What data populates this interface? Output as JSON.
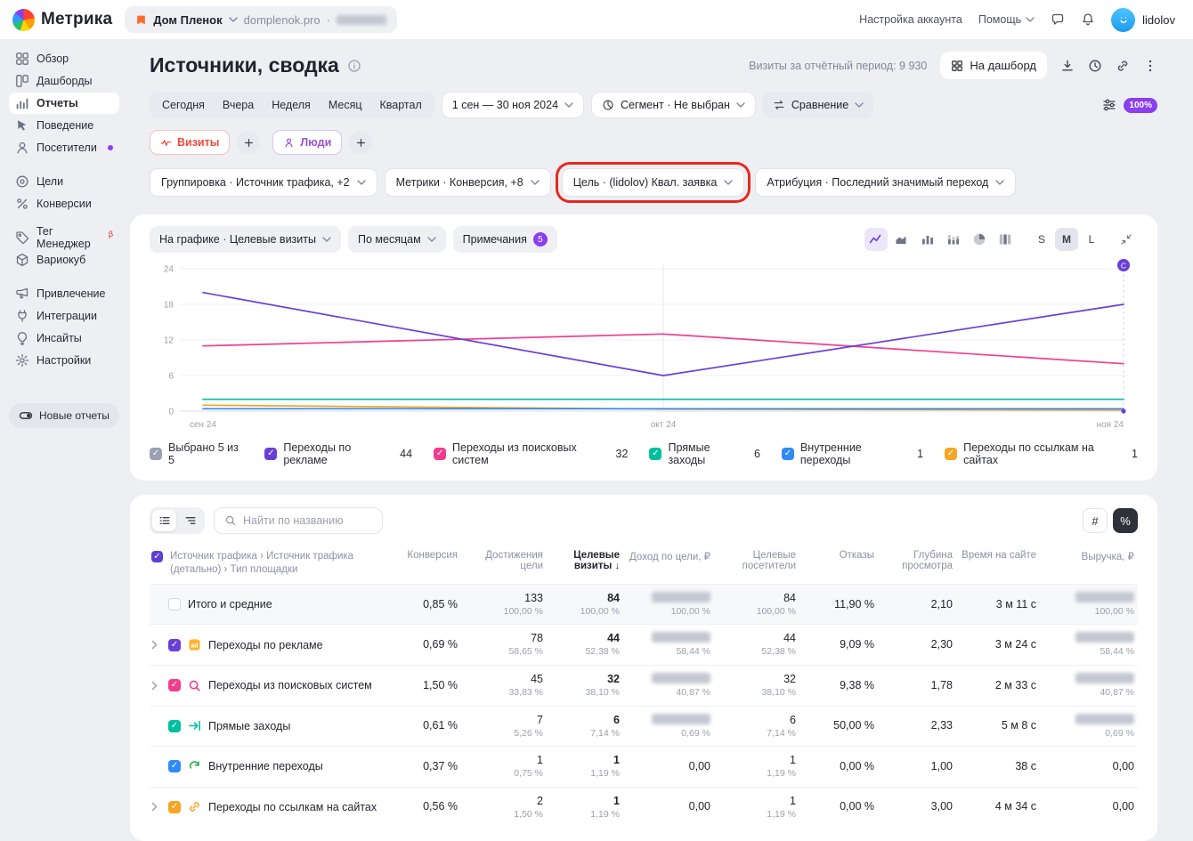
{
  "topbar": {
    "logo_text": "Метрика",
    "counter": {
      "name": "Дом Пленок",
      "domain": "domplenok.pro",
      "separator": "·"
    },
    "account_settings": "Настройка аккаунта",
    "help": "Помощь",
    "user_name": "lidolov"
  },
  "sidebar": {
    "sections": [
      {
        "items": [
          {
            "key": "overview",
            "label": "Обзор",
            "icon": "overview"
          },
          {
            "key": "dashboards",
            "label": "Дашборды",
            "icon": "dashboards"
          },
          {
            "key": "reports",
            "label": "Отчеты",
            "icon": "reports",
            "active": true
          },
          {
            "key": "behavior",
            "label": "Поведение",
            "icon": "behavior"
          },
          {
            "key": "visitors",
            "label": "Посетители",
            "icon": "visitors",
            "dot": true
          }
        ]
      },
      {
        "items": [
          {
            "key": "goals",
            "label": "Цели",
            "icon": "goals"
          },
          {
            "key": "conversions",
            "label": "Конверсии",
            "icon": "conversions"
          }
        ]
      },
      {
        "items": [
          {
            "key": "tag-manager",
            "label": "Тег Менеджер",
            "icon": "tag",
            "badge": "β"
          },
          {
            "key": "variocube",
            "label": "Вариокуб",
            "icon": "variocube"
          }
        ]
      },
      {
        "items": [
          {
            "key": "attraction",
            "label": "Привлечение",
            "icon": "attraction"
          },
          {
            "key": "integrations",
            "label": "Интеграции",
            "icon": "integrations"
          },
          {
            "key": "insights",
            "label": "Инсайты",
            "icon": "insights"
          },
          {
            "key": "settings",
            "label": "Настройки",
            "icon": "settings"
          }
        ]
      }
    ],
    "new_reports_label": "Новые отчеты"
  },
  "page": {
    "title": "Источники, сводка",
    "visits_summary": "Визиты за отчётный период: 9 930",
    "to_dashboard": "На дашборд"
  },
  "filters": {
    "periods": [
      "Сегодня",
      "Вчера",
      "Неделя",
      "Месяц",
      "Квартал"
    ],
    "date_range": "1 сен — 30 ноя 2024",
    "segment": "Сегмент · Не выбран",
    "comparison": "Сравнение",
    "sampling": "100%",
    "metric_chips": [
      {
        "key": "visits",
        "label": "Визиты",
        "color": "#ef4a3d",
        "icon": "pulse"
      },
      {
        "key": "people",
        "label": "Люди",
        "color": "#9954d6",
        "icon": "person"
      }
    ],
    "setting_chips": [
      {
        "key": "grouping",
        "label": "Группировка · Источник трафика, +2"
      },
      {
        "key": "metrics",
        "label": "Метрики · Конверсия, +8"
      },
      {
        "key": "goal",
        "label": "Цель · (lidolov) Квал. заявка",
        "annotated": true
      },
      {
        "key": "attribution",
        "label": "Атрибуция · Последний значимый переход"
      }
    ]
  },
  "chart_card": {
    "on_chart": "На графике · Целевые визиты",
    "grouping": "По месяцам",
    "notes": "Примечания",
    "notes_count": "5",
    "view_icons": [
      "line",
      "area",
      "bars",
      "stacked",
      "pie",
      "columns"
    ],
    "active_view": "line",
    "sizes": [
      "S",
      "M",
      "L"
    ],
    "active_size": "M",
    "selected_label": "Выбрано 5 из 5",
    "current_marker": "C"
  },
  "chart_data": {
    "type": "line",
    "title": "Целевые визиты по месяцам",
    "x": [
      "сен 24",
      "окт 24",
      "ноя 24"
    ],
    "ylim": [
      0,
      24
    ],
    "yticks": [
      0,
      6,
      12,
      18,
      24
    ],
    "grid": true,
    "legend_position": "bottom",
    "series": [
      {
        "name": "Переходы по рекламе",
        "values": [
          20,
          6,
          18
        ],
        "total": 44,
        "color": "#6a3fd8"
      },
      {
        "name": "Переходы из поисковых систем",
        "values": [
          11,
          13,
          8
        ],
        "total": 32,
        "color": "#f23d8f"
      },
      {
        "name": "Прямые заходы",
        "values": [
          2,
          2,
          2
        ],
        "total": 6,
        "color": "#00bfa0"
      },
      {
        "name": "Внутренние переходы",
        "values": [
          0.4,
          0.4,
          0.4
        ],
        "total": 1,
        "color": "#2f8af5"
      },
      {
        "name": "Переходы по ссылкам на сайтах",
        "values": [
          1,
          0.35,
          0.2
        ],
        "total": 1,
        "color": "#f5a623"
      }
    ]
  },
  "table": {
    "search_placeholder": "Найти по названию",
    "hash_btn": "#",
    "percent_btn": "%",
    "headers": [
      {
        "label": "Источник трафика › Источник трафика (детально) › Тип площадки",
        "first": true
      },
      {
        "label": "Конверсия"
      },
      {
        "label": "Достижения цели"
      },
      {
        "label": "Целевые визиты",
        "sorted": true
      },
      {
        "label": "Доход по цели, ₽"
      },
      {
        "label": "Целевые посетители"
      },
      {
        "label": "Отказы"
      },
      {
        "label": "Глубина просмотра"
      },
      {
        "label": "Время на сайте"
      },
      {
        "label": "Выручка, ₽"
      }
    ],
    "rows": [
      {
        "name": "Итого и средние",
        "total": true,
        "chevron": false,
        "cells": [
          {
            "v": "0,85 %"
          },
          {
            "v": "133",
            "s": "100,00 %"
          },
          {
            "v": "84",
            "s": "100,00 %"
          },
          {
            "b": true,
            "s": "100,00 %"
          },
          {
            "v": "84",
            "s": "100,00 %"
          },
          {
            "v": "11,90 %"
          },
          {
            "v": "2,10"
          },
          {
            "v": "3 м 11 с"
          },
          {
            "b": true,
            "s": "100,00 %"
          }
        ]
      },
      {
        "name": "Переходы по рекламе",
        "chevron": true,
        "check_color": "#6a3fd8",
        "icon": "src-ads",
        "cells": [
          {
            "v": "0,69 %"
          },
          {
            "v": "78",
            "s": "58,65 %"
          },
          {
            "v": "44",
            "s": "52,38 %"
          },
          {
            "b": true,
            "s": "58,44 %"
          },
          {
            "v": "44",
            "s": "52,38 %"
          },
          {
            "v": "9,09 %"
          },
          {
            "v": "2,30"
          },
          {
            "v": "3 м 24 с"
          },
          {
            "b": true,
            "s": "58,44 %"
          }
        ]
      },
      {
        "name": "Переходы из поисковых систем",
        "chevron": true,
        "check_color": "#f23d8f",
        "icon": "src-search",
        "cells": [
          {
            "v": "1,50 %"
          },
          {
            "v": "45",
            "s": "33,83 %"
          },
          {
            "v": "32",
            "s": "38,10 %"
          },
          {
            "b": true,
            "s": "40,87 %"
          },
          {
            "v": "32",
            "s": "38,10 %"
          },
          {
            "v": "9,38 %"
          },
          {
            "v": "1,78"
          },
          {
            "v": "2 м 33 с"
          },
          {
            "b": true,
            "s": "40,87 %"
          }
        ]
      },
      {
        "name": "Прямые заходы",
        "chevron": false,
        "check_color": "#00bfa0",
        "icon": "src-direct",
        "cells": [
          {
            "v": "0,61 %"
          },
          {
            "v": "7",
            "s": "5,26 %"
          },
          {
            "v": "6",
            "s": "7,14 %"
          },
          {
            "b": true,
            "s": "0,69 %"
          },
          {
            "v": "6",
            "s": "7,14 %"
          },
          {
            "v": "50,00 %"
          },
          {
            "v": "2,33"
          },
          {
            "v": "5 м 8 с"
          },
          {
            "b": true,
            "s": "0,69 %"
          }
        ]
      },
      {
        "name": "Внутренние переходы",
        "chevron": false,
        "check_color": "#2f8af5",
        "icon": "src-internal",
        "cells": [
          {
            "v": "0,37 %"
          },
          {
            "v": "1",
            "s": "0,75 %"
          },
          {
            "v": "1",
            "s": "1,19 %"
          },
          {
            "v": "0,00"
          },
          {
            "v": "1",
            "s": "1,19 %"
          },
          {
            "v": "0,00 %"
          },
          {
            "v": "1,00"
          },
          {
            "v": "38 с"
          },
          {
            "v": "0,00"
          }
        ]
      },
      {
        "name": "Переходы по ссылкам на сайтах",
        "chevron": true,
        "check_color": "#f5a623",
        "icon": "src-links",
        "cells": [
          {
            "v": "0,56 %"
          },
          {
            "v": "2",
            "s": "1,50 %"
          },
          {
            "v": "1",
            "s": "1,19 %"
          },
          {
            "v": "0,00"
          },
          {
            "v": "1",
            "s": "1,19 %"
          },
          {
            "v": "0,00 %"
          },
          {
            "v": "3,00"
          },
          {
            "v": "4 м 34 с"
          },
          {
            "v": "0,00"
          }
        ]
      }
    ]
  },
  "colors": {
    "accent": "#8a3ff0",
    "annotation": "#e8281e",
    "select_all_checkbox": "#5d3fd8",
    "legend_all_checkbox": "#99a1b3"
  }
}
